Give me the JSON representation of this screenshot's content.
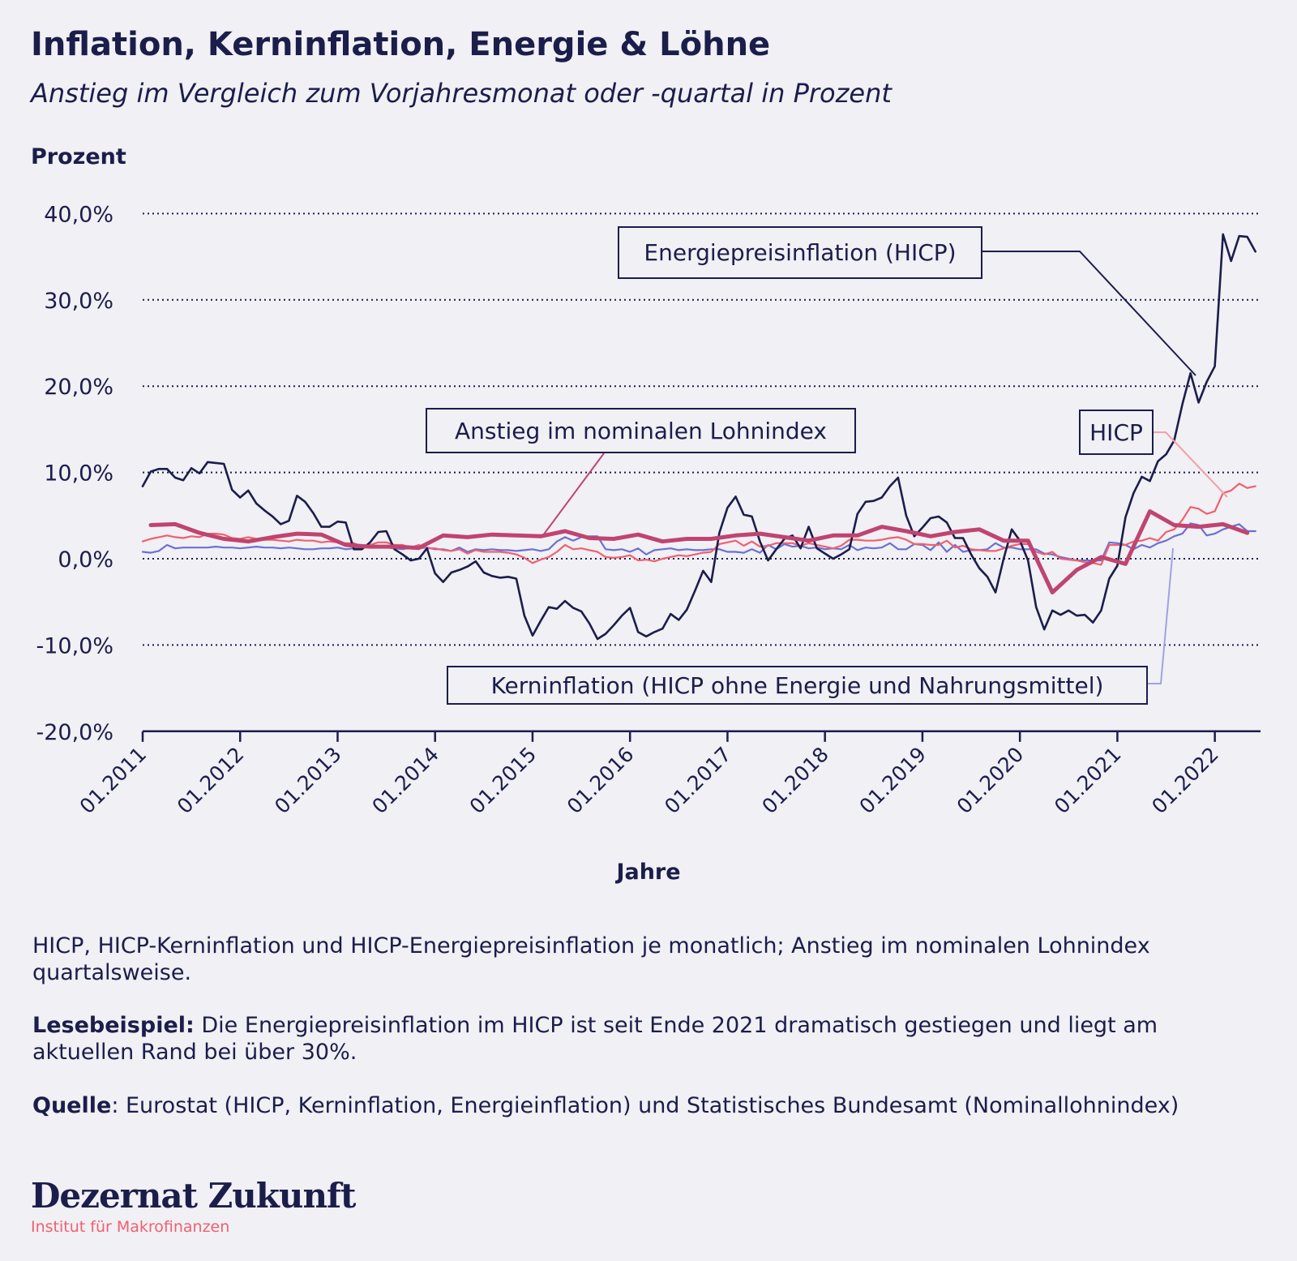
{
  "header": {
    "title": "Inflation, Kerninflation, Energie & Löhne",
    "subtitle": "Anstieg im Vergleich zum Vorjahresmonat oder -quartal in Prozent"
  },
  "chart_data": {
    "type": "line",
    "ylabel": "Prozent",
    "xlabel": "Jahre",
    "ylim": [
      -20,
      40
    ],
    "yticks": [
      "40,0%",
      "30,0%",
      "20,0%",
      "10,0%",
      "0,0%",
      "-10,0%",
      "-20,0%"
    ],
    "ytick_values": [
      40,
      30,
      20,
      10,
      0,
      -10,
      -20
    ],
    "xticks": [
      "01.2011",
      "01.2012",
      "01.2013",
      "01.2014",
      "01.2015",
      "01.2016",
      "01.2017",
      "01.2018",
      "01.2019",
      "01.2020",
      "01.2021",
      "01.2022"
    ],
    "x_range": [
      "01.2011",
      "06.2022"
    ],
    "grid": "horizontal dotted",
    "monthly_start": "01.2011",
    "series": [
      {
        "name": "Energiepreisinflation (HICP)",
        "frequency": "monthly",
        "color": "#1b1d4a",
        "values": [
          8.4,
          10.1,
          10.4,
          10.4,
          9.4,
          9.1,
          10.5,
          9.9,
          11.2,
          11.1,
          11.0,
          8.0,
          7.1,
          7.9,
          6.4,
          5.6,
          4.9,
          4.0,
          4.4,
          7.3,
          6.6,
          5.3,
          3.7,
          3.7,
          4.3,
          4.2,
          1.1,
          1.1,
          1.9,
          3.1,
          3.2,
          1.1,
          0.5,
          -0.2,
          0.0,
          1.2,
          -1.7,
          -2.7,
          -1.6,
          -1.3,
          -0.9,
          -0.3,
          -1.6,
          -2.0,
          -2.2,
          -2.1,
          -2.3,
          -6.6,
          -8.9,
          -7.2,
          -5.6,
          -5.8,
          -4.9,
          -5.7,
          -6.1,
          -7.5,
          -9.3,
          -8.7,
          -7.7,
          -6.6,
          -5.7,
          -8.5,
          -9.0,
          -8.5,
          -8.1,
          -6.4,
          -7.1,
          -5.9,
          -3.7,
          -1.4,
          -2.7,
          3.0,
          5.9,
          7.2,
          5.1,
          4.9,
          2.0,
          -0.2,
          1.1,
          2.3,
          2.7,
          1.2,
          3.7,
          1.2,
          0.6,
          0.0,
          0.5,
          1.1,
          5.2,
          6.6,
          6.7,
          7.1,
          8.4,
          9.4,
          5.0,
          2.6,
          3.6,
          4.7,
          4.9,
          4.2,
          2.4,
          2.4,
          0.5,
          -1.1,
          -2.1,
          -3.9,
          0.0,
          3.4,
          2.1,
          -0.2,
          -5.6,
          -8.2,
          -6.0,
          -6.5,
          -6.0,
          -6.6,
          -6.5,
          -7.4,
          -6.0,
          -2.3,
          -0.8,
          4.8,
          7.6,
          9.5,
          9.0,
          11.3,
          12.1,
          13.7,
          17.9,
          21.5,
          18.1,
          20.5,
          22.3,
          37.6,
          34.5,
          37.4,
          37.3,
          35.6
        ]
      },
      {
        "name": "HICP",
        "frequency": "monthly",
        "color": "#f0606f",
        "values": [
          2.0,
          2.3,
          2.5,
          2.7,
          2.5,
          2.4,
          2.6,
          2.5,
          2.9,
          2.9,
          2.8,
          2.4,
          2.3,
          2.5,
          2.3,
          2.2,
          2.2,
          2.1,
          2.0,
          2.2,
          2.1,
          2.1,
          1.9,
          2.0,
          1.9,
          1.8,
          1.8,
          1.4,
          1.6,
          1.9,
          1.9,
          1.6,
          1.6,
          1.3,
          1.6,
          1.2,
          1.2,
          1.0,
          0.9,
          1.1,
          0.6,
          1.0,
          0.8,
          0.8,
          0.8,
          0.7,
          0.5,
          0.1,
          -0.5,
          -0.1,
          0.2,
          0.8,
          1.6,
          1.1,
          1.2,
          1.0,
          0.8,
          0.2,
          0.1,
          0.2,
          0.4,
          -0.2,
          -0.1,
          -0.3,
          0.0,
          0.2,
          0.4,
          0.3,
          0.5,
          0.7,
          0.8,
          1.7,
          1.9,
          2.1,
          1.5,
          2.0,
          1.4,
          1.5,
          1.8,
          1.8,
          1.8,
          1.5,
          1.8,
          1.6,
          1.4,
          1.2,
          1.5,
          2.2,
          2.2,
          2.1,
          2.1,
          2.2,
          2.4,
          2.5,
          2.2,
          1.7,
          1.7,
          1.6,
          1.6,
          2.1,
          1.3,
          1.5,
          1.1,
          1.0,
          0.9,
          0.9,
          1.2,
          1.5,
          1.7,
          1.7,
          0.8,
          0.5,
          0.8,
          0.0,
          -0.1,
          -0.2,
          -0.4,
          -0.5,
          -0.7,
          1.6,
          1.6,
          1.6,
          2.0,
          2.1,
          2.4,
          2.1,
          3.1,
          3.4,
          4.5,
          6.0,
          5.8,
          5.2,
          5.5,
          7.6,
          7.9,
          8.7,
          8.2,
          8.4
        ]
      },
      {
        "name": "Kerninflation (HICP ohne Energie und Nahrungsmittel)",
        "frequency": "monthly",
        "color": "#6b70d0",
        "values": [
          0.8,
          0.7,
          0.9,
          1.6,
          1.2,
          1.3,
          1.3,
          1.3,
          1.3,
          1.4,
          1.3,
          1.3,
          1.2,
          1.3,
          1.4,
          1.3,
          1.3,
          1.2,
          1.3,
          1.2,
          1.1,
          1.1,
          1.2,
          1.2,
          1.3,
          1.1,
          1.2,
          1.3,
          1.5,
          1.4,
          1.3,
          1.2,
          1.1,
          1.3,
          1.2,
          1.3,
          1.1,
          1.1,
          0.9,
          1.3,
          0.8,
          1.1,
          1.0,
          1.1,
          1.0,
          1.0,
          0.9,
          1.0,
          1.1,
          0.9,
          1.1,
          2.0,
          2.5,
          2.1,
          2.5,
          2.6,
          2.6,
          1.1,
          1.0,
          1.1,
          0.8,
          1.2,
          0.5,
          1.0,
          1.1,
          1.2,
          1.0,
          1.1,
          1.0,
          1.0,
          1.1,
          1.1,
          0.8,
          0.8,
          0.7,
          1.1,
          0.7,
          1.6,
          1.1,
          1.7,
          1.4,
          1.5,
          1.2,
          1.3,
          1.1,
          1.2,
          1.1,
          1.6,
          1.0,
          1.3,
          1.2,
          1.3,
          1.8,
          1.1,
          1.1,
          1.7,
          1.6,
          1.0,
          1.9,
          0.8,
          1.6,
          0.8,
          1.0,
          1.0,
          1.1,
          1.8,
          1.3,
          1.3,
          1.1,
          1.1,
          1.1,
          0.6,
          0.5,
          0.2,
          0.0,
          -0.2,
          -0.2,
          -0.2,
          -0.2,
          1.9,
          1.8,
          1.6,
          1.1,
          1.6,
          1.3,
          1.8,
          2.1,
          2.6,
          2.9,
          4.1,
          3.9,
          2.7,
          2.9,
          3.4,
          3.7,
          4.0,
          3.2,
          3.2
        ]
      },
      {
        "name": "Anstieg im nominalen Lohnindex",
        "frequency": "quarterly",
        "color": "#c0446f",
        "values": [
          3.9,
          4.0,
          3.0,
          2.3,
          2.0,
          2.5,
          2.9,
          2.8,
          1.6,
          1.4,
          1.4,
          1.25,
          2.7,
          2.5,
          2.8,
          2.7,
          2.6,
          3.2,
          2.4,
          2.3,
          2.8,
          2.0,
          2.3,
          2.3,
          2.7,
          2.9,
          2.5,
          2.1,
          2.7,
          2.7,
          3.7,
          3.2,
          2.6,
          3.1,
          3.4,
          2.1,
          2.1,
          -3.9,
          -1.3,
          0.2,
          -0.6,
          5.5,
          3.9,
          3.7,
          4.0,
          3.0
        ]
      }
    ],
    "annotations": {
      "energy": "Energiepreisinflation (HICP)",
      "wages": "Anstieg im nominalen Lohnindex",
      "hicp": "HICP",
      "core": "Kerninflation (HICP ohne Energie und Nahrungsmittel)"
    }
  },
  "notes": {
    "n1": "HICP, HICP-Kerninflation und HICP-Energiepreisinflation je monatlich; Anstieg im nominalen Lohnindex quartalsweise.",
    "n2_label": "Lesebeispiel:",
    "n2": " Die Energiepreisinflation im HICP ist seit Ende 2021 dramatisch gestiegen und liegt am aktuellen Rand bei über 30%.",
    "n3_label": "Quelle",
    "n3": ": Eurostat (HICP, Kerninflation, Energieinflation) und Statistisches Bundesamt (Nominallohnindex)"
  },
  "logo": {
    "name": "Dezernat Zukunft",
    "tagline": "Institut für Makrofinanzen"
  }
}
